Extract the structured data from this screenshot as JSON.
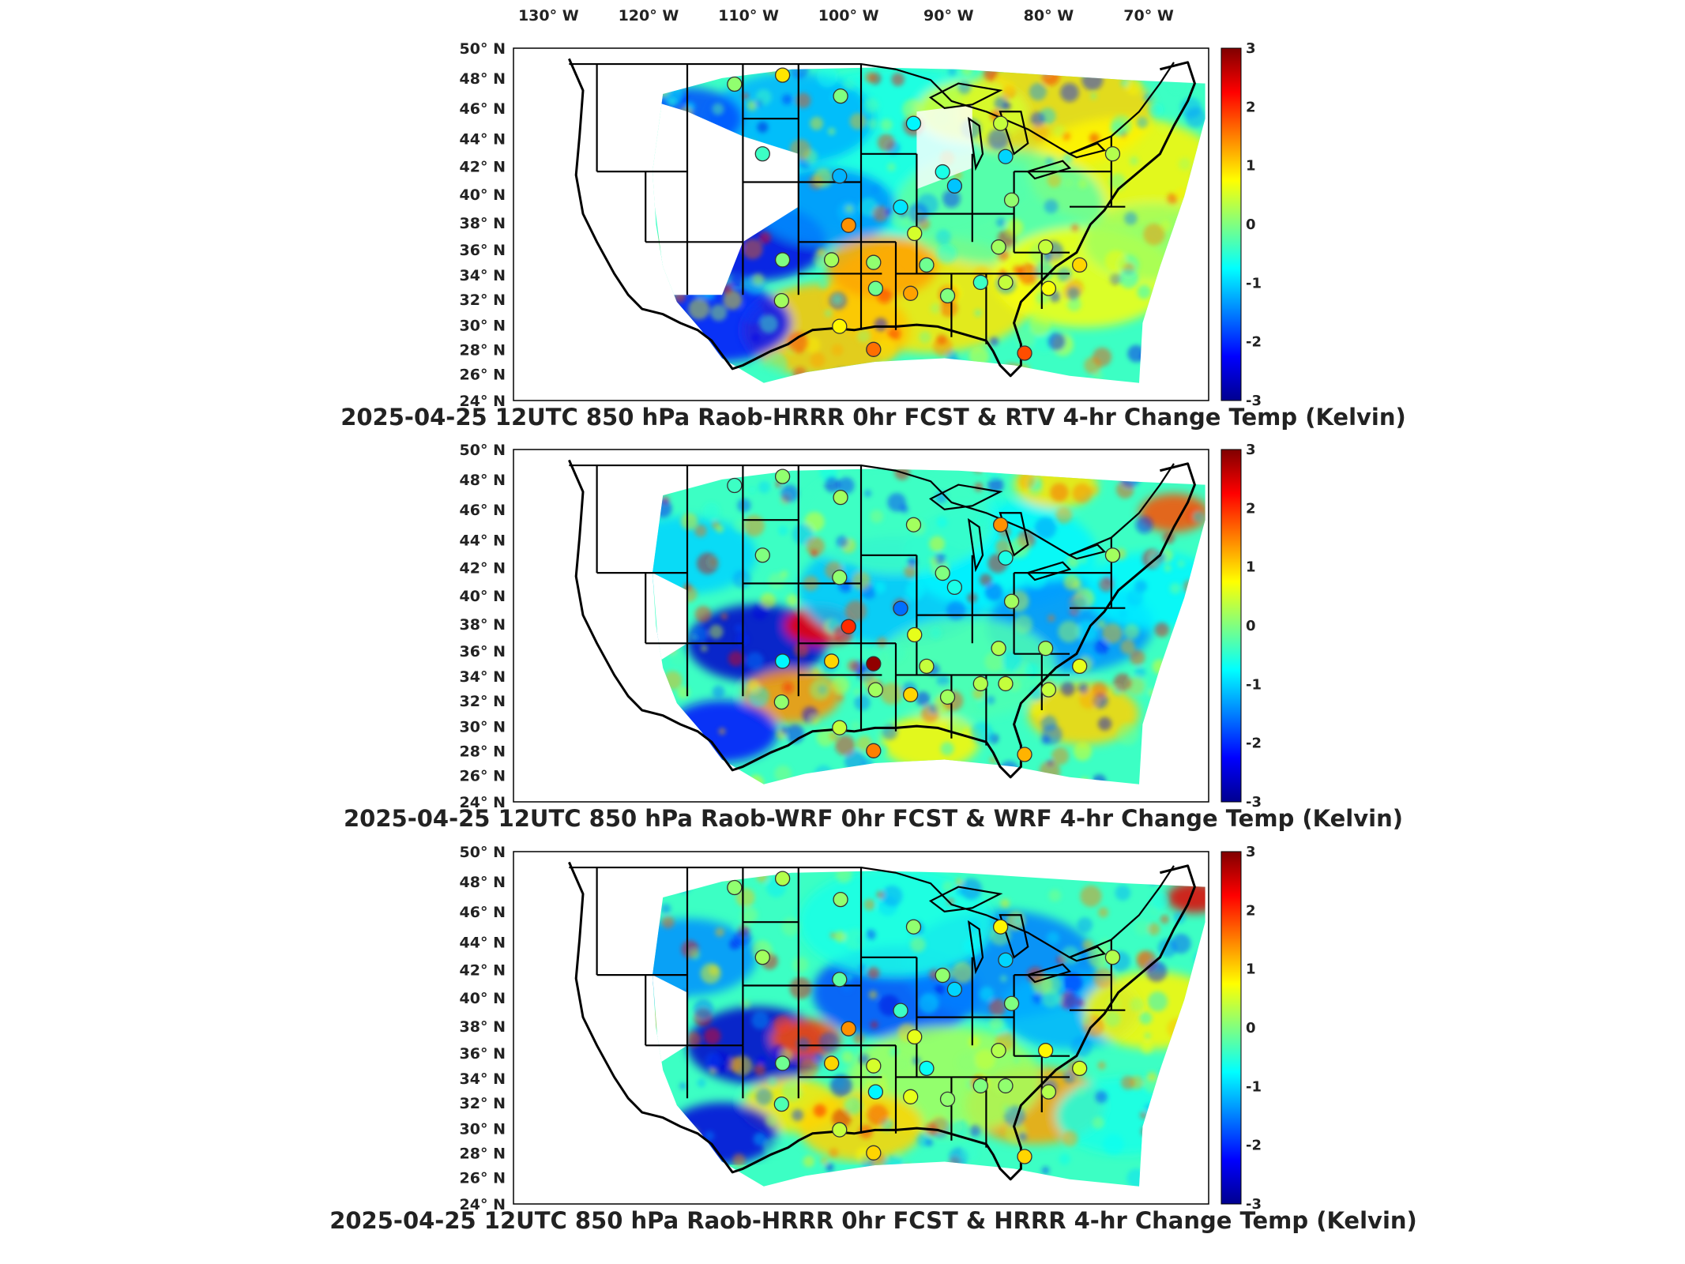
{
  "figure": {
    "longitude_ticks": [
      "130",
      "120",
      "110",
      "100",
      "90",
      "80",
      "70"
    ],
    "longitude_suffix": "W",
    "latitude_ticks": [
      "50",
      "48",
      "46",
      "44",
      "42",
      "40",
      "38",
      "36",
      "34",
      "32",
      "30",
      "28",
      "26",
      "24"
    ],
    "latitude_suffix": "N",
    "degree_symbol": "°"
  },
  "colorbar": {
    "ticks": [
      "3",
      "2",
      "1",
      "0",
      "-1",
      "-2",
      "-3"
    ],
    "range": [
      -3,
      3
    ],
    "colormap": [
      "#00008f",
      "#0000ff",
      "#0080ff",
      "#00ffff",
      "#80ff80",
      "#ffff00",
      "#ff8000",
      "#ff0000",
      "#800000"
    ]
  },
  "panels": [
    {
      "title": "2025-04-25 12UTC 850 hPa Raob-HRRR 0hr FCST & RTV 4-hr Change Temp (Kelvin)",
      "field_style": "rtv",
      "raob_markers": [
        {
          "lat": 47.6,
          "lon": -111.4,
          "value": 0.1
        },
        {
          "lat": 48.2,
          "lon": -106.6,
          "value": 0.9
        },
        {
          "lat": 46.8,
          "lon": -100.8,
          "value": 0.0
        },
        {
          "lat": 45.0,
          "lon": -93.5,
          "value": -0.8
        },
        {
          "lat": 45.0,
          "lon": -84.8,
          "value": 0.4
        },
        {
          "lat": 42.9,
          "lon": -108.6,
          "value": -0.4
        },
        {
          "lat": 42.7,
          "lon": -84.3,
          "value": -1.0
        },
        {
          "lat": 42.9,
          "lon": -73.6,
          "value": 0.3
        },
        {
          "lat": 41.3,
          "lon": -100.9,
          "value": -1.2
        },
        {
          "lat": 41.6,
          "lon": -90.6,
          "value": -0.6
        },
        {
          "lat": 40.6,
          "lon": -89.4,
          "value": -1.1
        },
        {
          "lat": 39.6,
          "lon": -83.7,
          "value": 0.1
        },
        {
          "lat": 39.1,
          "lon": -94.8,
          "value": -0.9
        },
        {
          "lat": 37.8,
          "lon": -100.0,
          "value": 1.4
        },
        {
          "lat": 37.2,
          "lon": -93.4,
          "value": 0.5
        },
        {
          "lat": 36.2,
          "lon": -85.0,
          "value": 0.2
        },
        {
          "lat": 36.2,
          "lon": -80.3,
          "value": 0.4
        },
        {
          "lat": 35.2,
          "lon": -106.6,
          "value": 0.0
        },
        {
          "lat": 35.2,
          "lon": -101.7,
          "value": 0.2
        },
        {
          "lat": 35.0,
          "lon": -97.5,
          "value": 0.1
        },
        {
          "lat": 34.8,
          "lon": -92.2,
          "value": -0.1
        },
        {
          "lat": 34.8,
          "lon": -76.9,
          "value": 1.0
        },
        {
          "lat": 33.4,
          "lon": -86.8,
          "value": -0.4
        },
        {
          "lat": 33.4,
          "lon": -84.3,
          "value": 0.4
        },
        {
          "lat": 32.9,
          "lon": -97.3,
          "value": -0.1
        },
        {
          "lat": 32.5,
          "lon": -93.8,
          "value": 1.3
        },
        {
          "lat": 32.3,
          "lon": -90.1,
          "value": 0.0
        },
        {
          "lat": 32.9,
          "lon": -80.0,
          "value": 0.7
        },
        {
          "lat": 31.9,
          "lon": -106.7,
          "value": 0.2
        },
        {
          "lat": 29.9,
          "lon": -100.9,
          "value": 0.8
        },
        {
          "lat": 28.0,
          "lon": -97.5,
          "value": 1.6
        },
        {
          "lat": 27.7,
          "lon": -82.4,
          "value": 1.8
        }
      ]
    },
    {
      "title": "2025-04-25 12UTC 850 hPa Raob-WRF 0hr FCST & WRF 4-hr Change Temp (Kelvin)",
      "field_style": "wrf",
      "raob_markers": [
        {
          "lat": 47.6,
          "lon": -111.4,
          "value": -0.4
        },
        {
          "lat": 48.2,
          "lon": -106.6,
          "value": 0.1
        },
        {
          "lat": 46.8,
          "lon": -100.8,
          "value": 0.2
        },
        {
          "lat": 45.0,
          "lon": -93.5,
          "value": 0.2
        },
        {
          "lat": 45.0,
          "lon": -84.8,
          "value": 1.4
        },
        {
          "lat": 42.9,
          "lon": -108.6,
          "value": 0.0
        },
        {
          "lat": 42.7,
          "lon": -84.3,
          "value": -0.6
        },
        {
          "lat": 42.9,
          "lon": -73.6,
          "value": 0.2
        },
        {
          "lat": 41.3,
          "lon": -100.9,
          "value": 0.1
        },
        {
          "lat": 41.6,
          "lon": -90.6,
          "value": 0.0
        },
        {
          "lat": 40.6,
          "lon": -89.4,
          "value": -0.6
        },
        {
          "lat": 39.6,
          "lon": -83.7,
          "value": 0.2
        },
        {
          "lat": 39.1,
          "lon": -94.8,
          "value": -1.6
        },
        {
          "lat": 37.8,
          "lon": -100.0,
          "value": 2.0
        },
        {
          "lat": 37.2,
          "lon": -93.4,
          "value": 0.6
        },
        {
          "lat": 36.2,
          "lon": -85.0,
          "value": 0.3
        },
        {
          "lat": 36.2,
          "lon": -80.3,
          "value": 0.2
        },
        {
          "lat": 35.2,
          "lon": -106.6,
          "value": -0.8
        },
        {
          "lat": 35.2,
          "lon": -101.7,
          "value": 1.0
        },
        {
          "lat": 35.0,
          "lon": -97.5,
          "value": 2.9
        },
        {
          "lat": 34.8,
          "lon": -92.2,
          "value": 0.4
        },
        {
          "lat": 34.8,
          "lon": -76.9,
          "value": 0.6
        },
        {
          "lat": 33.4,
          "lon": -86.8,
          "value": 0.3
        },
        {
          "lat": 33.4,
          "lon": -84.3,
          "value": 0.4
        },
        {
          "lat": 32.9,
          "lon": -97.3,
          "value": 0.2
        },
        {
          "lat": 32.5,
          "lon": -93.8,
          "value": 1.0
        },
        {
          "lat": 32.3,
          "lon": -90.1,
          "value": 0.2
        },
        {
          "lat": 32.9,
          "lon": -80.0,
          "value": 0.4
        },
        {
          "lat": 31.9,
          "lon": -106.7,
          "value": 0.1
        },
        {
          "lat": 29.9,
          "lon": -100.9,
          "value": 0.4
        },
        {
          "lat": 28.0,
          "lon": -97.5,
          "value": 1.5
        },
        {
          "lat": 27.7,
          "lon": -82.4,
          "value": 1.2
        }
      ]
    },
    {
      "title": "2025-04-25 12UTC 850 hPa Raob-HRRR 0hr FCST & HRRR 4-hr Change Temp (Kelvin)",
      "field_style": "hrrr",
      "raob_markers": [
        {
          "lat": 47.6,
          "lon": -111.4,
          "value": 0.1
        },
        {
          "lat": 48.2,
          "lon": -106.6,
          "value": 0.3
        },
        {
          "lat": 46.8,
          "lon": -100.8,
          "value": 0.1
        },
        {
          "lat": 45.0,
          "lon": -93.5,
          "value": 0.1
        },
        {
          "lat": 45.0,
          "lon": -84.8,
          "value": 0.8
        },
        {
          "lat": 42.9,
          "lon": -108.6,
          "value": 0.2
        },
        {
          "lat": 42.7,
          "lon": -84.3,
          "value": -1.0
        },
        {
          "lat": 42.9,
          "lon": -73.6,
          "value": 0.3
        },
        {
          "lat": 41.3,
          "lon": -100.9,
          "value": -0.2
        },
        {
          "lat": 41.6,
          "lon": -90.6,
          "value": 0.1
        },
        {
          "lat": 40.6,
          "lon": -89.4,
          "value": -1.0
        },
        {
          "lat": 39.6,
          "lon": -83.7,
          "value": 0.0
        },
        {
          "lat": 39.1,
          "lon": -94.8,
          "value": -0.4
        },
        {
          "lat": 37.8,
          "lon": -100.0,
          "value": 1.4
        },
        {
          "lat": 37.2,
          "lon": -93.4,
          "value": 0.6
        },
        {
          "lat": 36.2,
          "lon": -85.0,
          "value": 0.3
        },
        {
          "lat": 36.2,
          "lon": -80.3,
          "value": 0.8
        },
        {
          "lat": 35.2,
          "lon": -106.6,
          "value": -0.1
        },
        {
          "lat": 35.2,
          "lon": -101.7,
          "value": 1.0
        },
        {
          "lat": 35.0,
          "lon": -97.5,
          "value": 0.5
        },
        {
          "lat": 34.8,
          "lon": -92.2,
          "value": -0.7
        },
        {
          "lat": 34.8,
          "lon": -76.9,
          "value": 0.5
        },
        {
          "lat": 33.4,
          "lon": -86.8,
          "value": 0.0
        },
        {
          "lat": 33.4,
          "lon": -84.3,
          "value": 0.1
        },
        {
          "lat": 32.9,
          "lon": -97.3,
          "value": -0.8
        },
        {
          "lat": 32.5,
          "lon": -93.8,
          "value": 0.6
        },
        {
          "lat": 32.3,
          "lon": -90.1,
          "value": 0.1
        },
        {
          "lat": 32.9,
          "lon": -80.0,
          "value": 0.3
        },
        {
          "lat": 31.9,
          "lon": -106.7,
          "value": -0.3
        },
        {
          "lat": 29.9,
          "lon": -100.9,
          "value": 0.4
        },
        {
          "lat": 28.0,
          "lon": -97.5,
          "value": 1.0
        },
        {
          "lat": 27.7,
          "lon": -82.4,
          "value": 1.0
        }
      ]
    }
  ]
}
